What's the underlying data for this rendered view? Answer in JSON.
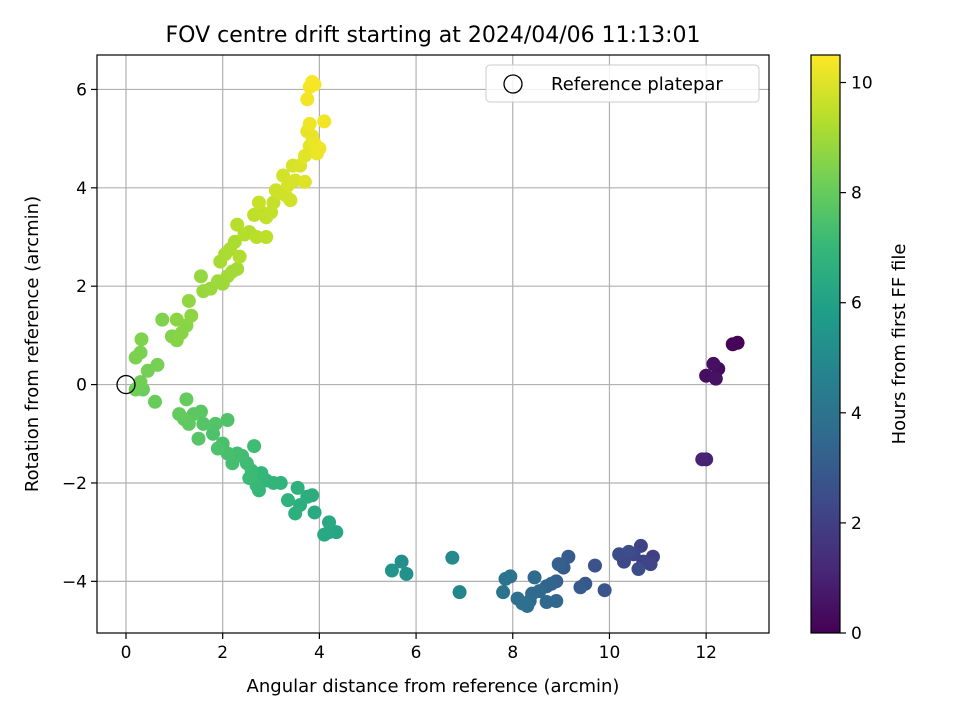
{
  "chart_data": {
    "type": "scatter",
    "title": "FOV centre drift starting at 2024/04/06 11:13:01",
    "xlabel": "Angular distance from reference (arcmin)",
    "ylabel": "Rotation from reference (arcmin)",
    "colorbar_label": "Hours from first FF file",
    "xlim": [
      -0.6,
      13.3
    ],
    "ylim": [
      -5.05,
      6.7
    ],
    "clim": [
      0,
      10.5
    ],
    "grid": true,
    "legend": {
      "position": "top-right",
      "entries": [
        "Reference platepar"
      ]
    },
    "x_ticks": [
      "0",
      "2",
      "4",
      "6",
      "8",
      "10",
      "12"
    ],
    "y_ticks": [
      "−4",
      "−2",
      "0",
      "2",
      "4",
      "6"
    ],
    "colorbar_ticks": [
      "0",
      "2",
      "4",
      "6",
      "8",
      "10"
    ],
    "colormap": [
      "#440154",
      "#482878",
      "#3e4989",
      "#31688e",
      "#26828e",
      "#1f9e89",
      "#35b779",
      "#6ece58",
      "#b5de2b",
      "#fde725"
    ],
    "reference_point": {
      "x": 0,
      "y": 0,
      "label": "Reference platepar"
    },
    "points": [
      [
        12.65,
        0.85,
        0.05
      ],
      [
        12.55,
        0.82,
        0.15
      ],
      [
        12.25,
        0.32,
        0.3
      ],
      [
        12.0,
        0.18,
        0.4
      ],
      [
        12.15,
        0.42,
        0.45
      ],
      [
        12.2,
        0.12,
        0.5
      ],
      [
        12.0,
        -1.52,
        1.0
      ],
      [
        11.92,
        -1.52,
        1.05
      ],
      [
        10.9,
        -3.5,
        2.0
      ],
      [
        10.7,
        -3.6,
        2.1
      ],
      [
        10.65,
        -3.28,
        2.15
      ],
      [
        10.85,
        -3.65,
        2.2
      ],
      [
        10.5,
        -3.45,
        2.3
      ],
      [
        10.3,
        -3.6,
        2.35
      ],
      [
        10.2,
        -3.45,
        2.4
      ],
      [
        10.4,
        -3.4,
        2.45
      ],
      [
        10.6,
        -3.75,
        2.5
      ],
      [
        9.7,
        -3.68,
        2.7
      ],
      [
        9.9,
        -4.18,
        2.8
      ],
      [
        9.5,
        -4.05,
        2.9
      ],
      [
        9.4,
        -4.12,
        3.0
      ],
      [
        9.15,
        -3.5,
        3.0
      ],
      [
        9.05,
        -3.72,
        3.1
      ],
      [
        8.95,
        -3.65,
        3.15
      ],
      [
        8.9,
        -4.0,
        3.3
      ],
      [
        8.8,
        -4.05,
        3.35
      ],
      [
        8.7,
        -4.1,
        3.4
      ],
      [
        8.9,
        -4.4,
        3.45
      ],
      [
        8.7,
        -4.42,
        3.5
      ],
      [
        8.55,
        -4.2,
        3.55
      ],
      [
        8.45,
        -3.92,
        3.6
      ],
      [
        8.4,
        -4.25,
        3.65
      ],
      [
        8.35,
        -4.4,
        3.7
      ],
      [
        8.3,
        -4.5,
        3.8
      ],
      [
        8.2,
        -4.45,
        3.85
      ],
      [
        8.1,
        -4.35,
        3.9
      ],
      [
        7.95,
        -3.9,
        3.95
      ],
      [
        7.85,
        -3.95,
        4.0
      ],
      [
        7.8,
        -4.22,
        4.05
      ],
      [
        6.9,
        -4.22,
        4.8
      ],
      [
        6.75,
        -3.52,
        5.0
      ],
      [
        5.7,
        -3.6,
        5.2
      ],
      [
        5.8,
        -3.85,
        5.3
      ],
      [
        5.5,
        -3.78,
        5.4
      ],
      [
        4.35,
        -3.0,
        6.2
      ],
      [
        4.2,
        -3.0,
        6.25
      ],
      [
        4.1,
        -3.05,
        6.3
      ],
      [
        4.2,
        -2.8,
        6.3
      ],
      [
        3.9,
        -2.6,
        6.4
      ],
      [
        3.85,
        -2.25,
        6.5
      ],
      [
        3.75,
        -2.28,
        6.55
      ],
      [
        3.6,
        -2.45,
        6.6
      ],
      [
        3.5,
        -2.62,
        6.65
      ],
      [
        3.55,
        -2.1,
        6.7
      ],
      [
        3.35,
        -2.35,
        6.75
      ],
      [
        3.2,
        -2.0,
        6.8
      ],
      [
        3.05,
        -2.0,
        6.85
      ],
      [
        2.9,
        -1.95,
        6.9
      ],
      [
        2.8,
        -1.8,
        6.95
      ],
      [
        2.75,
        -2.15,
        7.0
      ],
      [
        2.7,
        -2.05,
        7.05
      ],
      [
        2.6,
        -1.75,
        7.1
      ],
      [
        2.55,
        -1.9,
        7.15
      ],
      [
        2.5,
        -1.6,
        7.2
      ],
      [
        2.65,
        -1.25,
        7.2
      ],
      [
        2.4,
        -1.45,
        7.25
      ],
      [
        2.3,
        -1.4,
        7.3
      ],
      [
        2.2,
        -1.6,
        7.35
      ],
      [
        2.1,
        -1.4,
        7.4
      ],
      [
        2.0,
        -1.2,
        7.45
      ],
      [
        1.9,
        -1.3,
        7.5
      ],
      [
        1.8,
        -1.0,
        7.5
      ],
      [
        2.1,
        -0.72,
        7.55
      ],
      [
        1.85,
        -0.8,
        7.6
      ],
      [
        1.6,
        -0.8,
        7.65
      ],
      [
        1.5,
        -1.1,
        7.7
      ],
      [
        1.55,
        -0.55,
        7.75
      ],
      [
        1.4,
        -0.6,
        7.8
      ],
      [
        1.3,
        -0.8,
        7.85
      ],
      [
        1.2,
        -0.7,
        7.9
      ],
      [
        1.1,
        -0.6,
        7.95
      ],
      [
        1.25,
        -0.3,
        8.0
      ],
      [
        0.6,
        -0.35,
        8.05
      ],
      [
        0.35,
        -0.1,
        8.1
      ],
      [
        0.2,
        -0.1,
        8.15
      ],
      [
        0.3,
        0.05,
        8.2
      ],
      [
        0.45,
        0.28,
        8.25
      ],
      [
        0.65,
        0.4,
        8.3
      ],
      [
        0.3,
        0.65,
        8.35
      ],
      [
        0.2,
        0.55,
        8.4
      ],
      [
        0.32,
        0.92,
        8.45
      ],
      [
        0.75,
        1.32,
        8.45
      ],
      [
        0.95,
        0.98,
        8.5
      ],
      [
        1.05,
        0.9,
        8.55
      ],
      [
        1.15,
        1.05,
        8.6
      ],
      [
        1.25,
        1.2,
        8.6
      ],
      [
        1.05,
        1.32,
        8.65
      ],
      [
        1.35,
        1.4,
        8.7
      ],
      [
        1.3,
        1.7,
        8.75
      ],
      [
        1.55,
        2.2,
        8.8
      ],
      [
        1.6,
        1.9,
        8.85
      ],
      [
        1.75,
        1.95,
        8.9
      ],
      [
        1.9,
        2.1,
        8.95
      ],
      [
        2.0,
        2.05,
        8.95
      ],
      [
        2.1,
        2.2,
        9.0
      ],
      [
        2.2,
        2.3,
        9.05
      ],
      [
        2.3,
        2.35,
        9.05
      ],
      [
        1.95,
        2.5,
        9.1
      ],
      [
        2.05,
        2.65,
        9.15
      ],
      [
        2.15,
        2.75,
        9.2
      ],
      [
        2.25,
        2.9,
        9.2
      ],
      [
        2.35,
        2.6,
        9.25
      ],
      [
        2.45,
        3.05,
        9.3
      ],
      [
        2.55,
        3.1,
        9.3
      ],
      [
        2.3,
        3.25,
        9.35
      ],
      [
        2.7,
        3.0,
        9.4
      ],
      [
        2.9,
        3.0,
        9.45
      ],
      [
        2.65,
        3.45,
        9.5
      ],
      [
        2.8,
        3.5,
        9.5
      ],
      [
        2.9,
        3.4,
        9.55
      ],
      [
        3.0,
        3.5,
        9.6
      ],
      [
        3.05,
        3.7,
        9.6
      ],
      [
        2.75,
        3.7,
        9.65
      ],
      [
        3.1,
        3.95,
        9.7
      ],
      [
        3.2,
        3.9,
        9.7
      ],
      [
        3.3,
        3.85,
        9.75
      ],
      [
        3.4,
        3.75,
        9.75
      ],
      [
        3.25,
        4.25,
        9.8
      ],
      [
        3.35,
        4.05,
        9.85
      ],
      [
        3.45,
        4.45,
        9.9
      ],
      [
        3.5,
        4.15,
        9.9
      ],
      [
        3.6,
        4.45,
        9.95
      ],
      [
        3.7,
        4.12,
        10.0
      ],
      [
        3.7,
        4.65,
        10.05
      ],
      [
        3.8,
        4.85,
        10.1
      ],
      [
        3.75,
        5.15,
        10.15
      ],
      [
        3.85,
        5.05,
        10.15
      ],
      [
        3.9,
        4.9,
        10.2
      ],
      [
        3.95,
        4.7,
        10.2
      ],
      [
        4.0,
        4.8,
        10.25
      ],
      [
        3.8,
        5.3,
        10.25
      ],
      [
        4.1,
        5.35,
        10.3
      ],
      [
        3.75,
        5.8,
        10.3
      ],
      [
        3.8,
        6.05,
        10.35
      ],
      [
        3.9,
        6.1,
        10.4
      ],
      [
        3.85,
        6.15,
        10.4
      ]
    ]
  }
}
